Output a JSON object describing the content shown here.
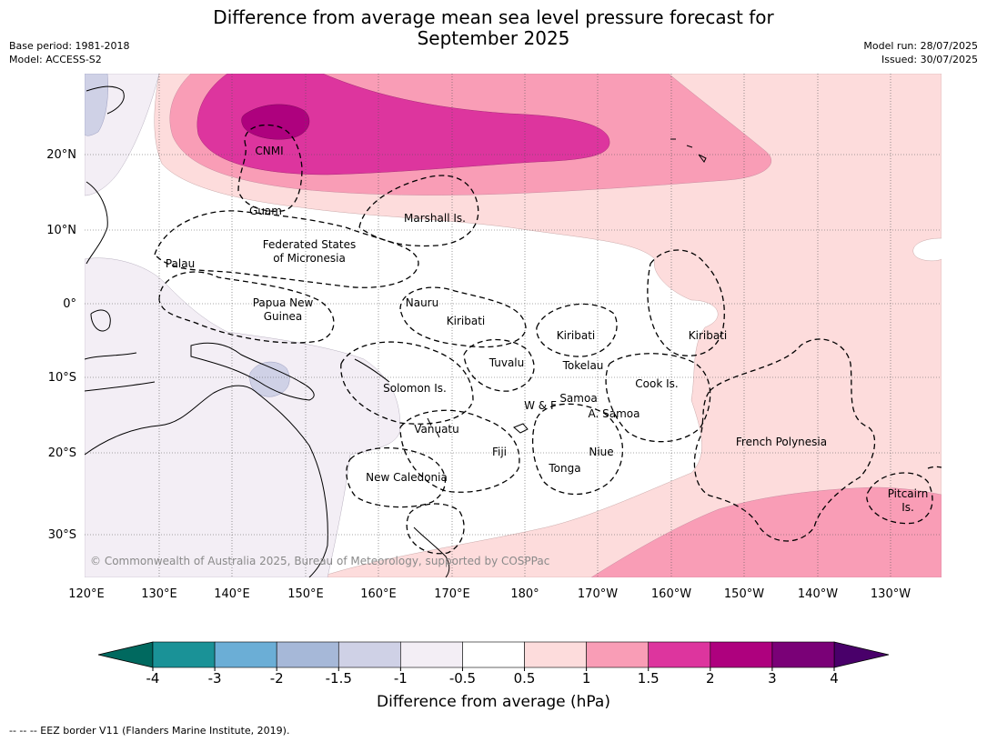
{
  "title_line1": "Difference from average mean sea level pressure forecast for",
  "title_line2": "September 2025",
  "meta_left": [
    "Base period: 1981-2018",
    "Model: ACCESS-S2"
  ],
  "meta_right": [
    "Model run: 28/07/2025",
    "Issued: 30/07/2025"
  ],
  "map": {
    "lon_labels": [
      "120°E",
      "130°E",
      "140°E",
      "150°E",
      "160°E",
      "170°E",
      "180°",
      "170°W",
      "160°W",
      "150°W",
      "140°W",
      "130°W"
    ],
    "lat_labels": [
      "20°N",
      "10°N",
      "0°",
      "10°S",
      "20°S",
      "30°S"
    ],
    "credit": "© Commonwealth of Australia 2025, Bureau of Meteorology, supported by COSPPac",
    "places": [
      "CNMI",
      "Guam",
      "Marshall Is.",
      "Federated States",
      "of Micronesia",
      "Palau",
      "Papua New",
      "Guinea",
      "Nauru",
      "Kiribati",
      "Kiribati",
      "Kiribati",
      "Tuvalu",
      "Tokelau",
      "Solomon Is.",
      "Samoa",
      "W & F",
      "A. Samoa",
      "Cook Is.",
      "Vanuatu",
      "Fiji",
      "Niue",
      "Tonga",
      "New Caledonia",
      "French Polynesia",
      "Pitcairn",
      "Is."
    ]
  },
  "colorbar": {
    "title": "Difference from average (hPa)",
    "ticks": [
      "-4",
      "-3",
      "-2",
      "-1.5",
      "-1",
      "-0.5",
      "0.5",
      "1",
      "1.5",
      "2",
      "3",
      "4"
    ],
    "colors": [
      "#1a9297",
      "#6baed6",
      "#a6b8d8",
      "#cfd1e6",
      "#f3eef5",
      "#ffffff",
      "#fddcdc",
      "#f99db6",
      "#dd359e",
      "#ae017e",
      "#7a0177"
    ],
    "low_extend_color": "#00695f",
    "high_extend_color": "#49006a"
  },
  "footer": "--  --  -- EEZ border V11 (Flanders Marine Institute, 2019)."
}
